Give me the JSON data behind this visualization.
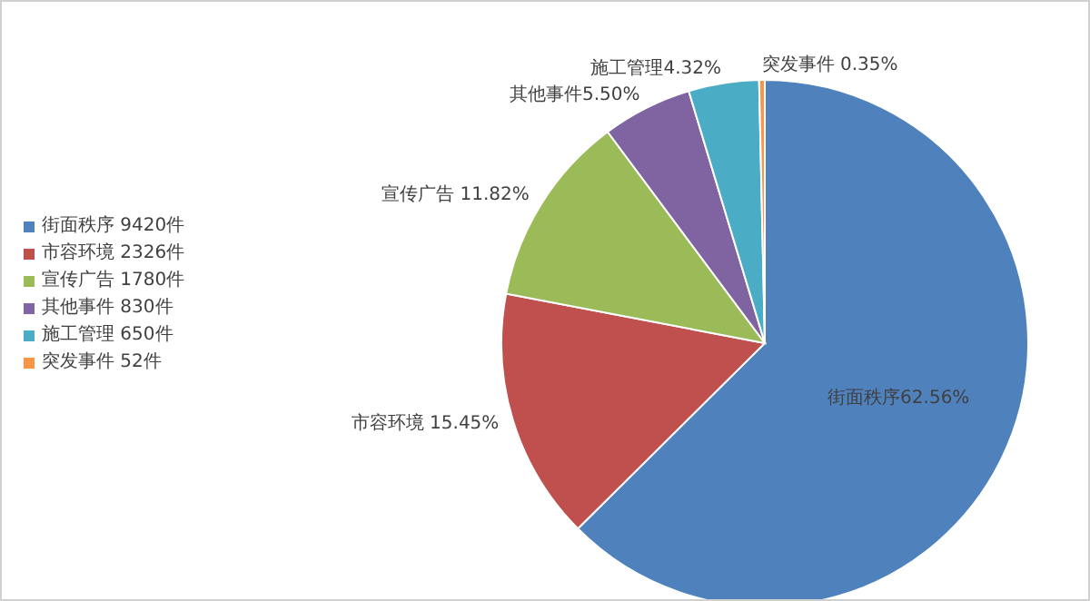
{
  "chart_data": {
    "type": "pie",
    "categories": [
      "街面秩序 9420件",
      "市容环境 2326件",
      "宣传广告 1780件",
      "其他事件 830件",
      "施工管理 650件",
      "突发事件 52件"
    ],
    "values": [
      9420,
      2326,
      1780,
      830,
      650,
      52
    ],
    "colors": [
      "#4f81bd",
      "#c0504d",
      "#9bbb59",
      "#8064a2",
      "#4bacc6",
      "#f79646"
    ],
    "value_labels": [
      "街面秩序62.56%",
      "市容环境 15.45%",
      "宣传广告 11.82%",
      "其他事件5.50%",
      "施工管理4.32%",
      "突发事件  0.35%"
    ],
    "legend": "left"
  }
}
